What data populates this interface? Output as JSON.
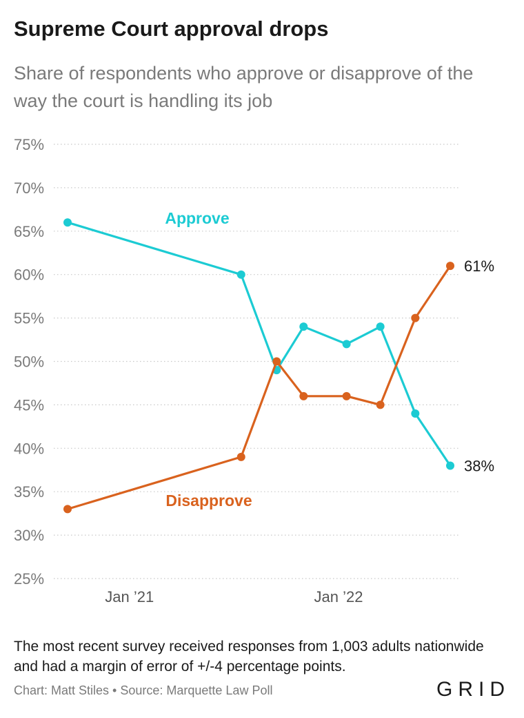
{
  "title": "Supreme Court approval drops",
  "subtitle": "Share of respondents who approve or disapprove of the way the court is handling its job",
  "note": "The most recent survey received responses from 1,003 adults nationwide and had a margin of error of +/-4 percentage points.",
  "credit": "Chart: Matt Stiles • Source: Marquette Law Poll",
  "logo": "GRID",
  "chart_data": {
    "type": "line",
    "x": [
      "2020-09-15",
      "2021-07-15",
      "2021-09-15",
      "2021-11-01",
      "2022-01-15",
      "2022-03-15",
      "2022-05-15",
      "2022-07-15"
    ],
    "x_ticks": [
      {
        "date": "2021-01-01",
        "label": "Jan ’21"
      },
      {
        "date": "2022-01-01",
        "label": "Jan ’22"
      }
    ],
    "y_ticks": [
      "75%",
      "70%",
      "65%",
      "60%",
      "55%",
      "50%",
      "45%",
      "40%",
      "35%",
      "30%",
      "25%"
    ],
    "ylim": [
      25,
      75
    ],
    "grid": true,
    "series": [
      {
        "name": "Approve",
        "color": "#1ccbd3",
        "values": [
          66,
          60,
          49,
          54,
          52,
          54,
          44,
          38
        ],
        "end_label": "38%"
      },
      {
        "name": "Disapprove",
        "color": "#d9621e",
        "values": [
          33,
          39,
          50,
          46,
          46,
          45,
          55,
          61
        ],
        "end_label": "61%"
      }
    ]
  }
}
